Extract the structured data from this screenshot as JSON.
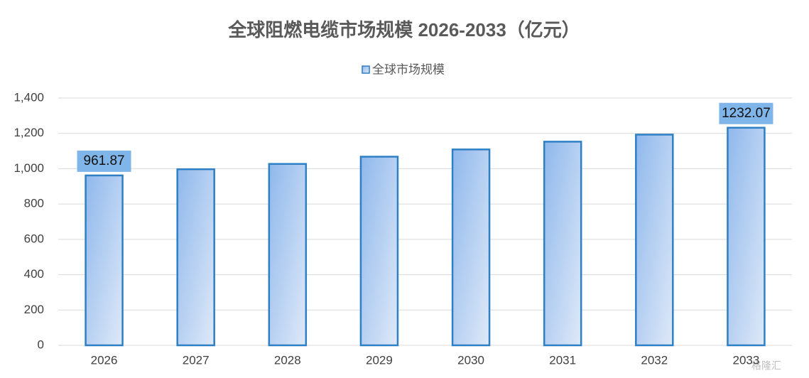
{
  "chart_data": {
    "type": "bar",
    "title": "全球阻燃电缆市场规模 2026-2033（亿元）",
    "categories": [
      "2026",
      "2027",
      "2028",
      "2029",
      "2030",
      "2031",
      "2032",
      "2033"
    ],
    "series": [
      {
        "name": "全球市场规模",
        "color": "#2e7fc4",
        "values": [
          961.87,
          997,
          1027,
          1068,
          1109,
          1153,
          1193,
          1232.07
        ],
        "value_labels": [
          "961.87",
          null,
          null,
          null,
          null,
          null,
          null,
          "1232.07"
        ]
      }
    ],
    "ylim": [
      0,
      1400
    ],
    "yticks": [
      0,
      200,
      400,
      600,
      800,
      {
        "value": 1000,
        "label": "1,000"
      },
      {
        "value": 1200,
        "label": "1,200"
      },
      {
        "value": 1400,
        "label": "1,400"
      }
    ],
    "grid": true,
    "legend": "top",
    "watermark": "格隆汇"
  }
}
